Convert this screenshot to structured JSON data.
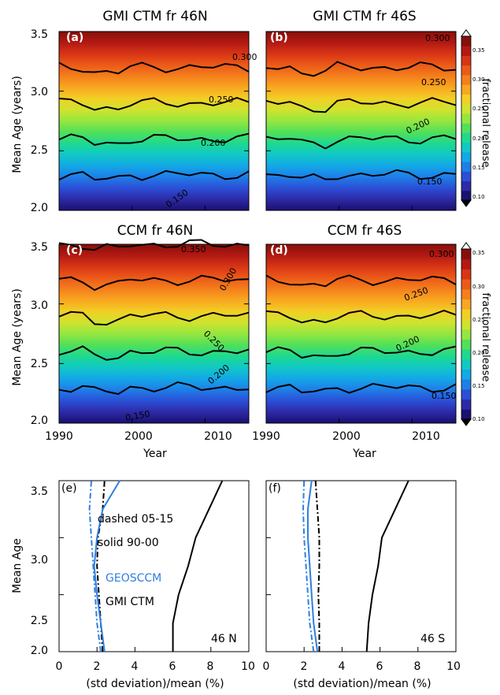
{
  "figure": {
    "colorbar_title": "fractional release",
    "colorbar_ticks": [
      "0.35",
      "0.30",
      "0.25",
      "0.20",
      "0.15",
      "0.10"
    ],
    "colormap": [
      "#1a1070",
      "#2d2aa6",
      "#2b4fd6",
      "#1e7fe8",
      "#13a8e6",
      "#11c9c4",
      "#1fd98f",
      "#52e058",
      "#96e640",
      "#d0e32e",
      "#f2cf25",
      "#f8a720",
      "#f47f1c",
      "#ec5a18",
      "#d83516",
      "#b31913",
      "#861009"
    ]
  },
  "chart_data": [
    {
      "type": "heatmap",
      "panel": "a",
      "title": "GMI CTM fr 46N",
      "x_range": [
        1990,
        2016
      ],
      "y_range": [
        2.0,
        3.5
      ],
      "ylabel": "Mean Age (years)",
      "xlabel": "",
      "y_ticks": [
        "2.0",
        "2.5",
        "3.0",
        "3.5"
      ],
      "x_ticks": [],
      "value_range": [
        0.1,
        0.35
      ],
      "contour_labels": [
        "0.300",
        "0.250",
        "0.200",
        "0.150"
      ],
      "contour_levels": [
        0.15,
        0.2,
        0.25,
        0.3
      ]
    },
    {
      "type": "heatmap",
      "panel": "b",
      "title": "GMI CTM fr 46S",
      "x_range": [
        1990,
        2016
      ],
      "y_range": [
        2.0,
        3.5
      ],
      "ylabel": "",
      "xlabel": "",
      "y_ticks": [],
      "x_ticks": [],
      "value_range": [
        0.1,
        0.35
      ],
      "contour_labels": [
        "0.300",
        "0.250",
        "0.200",
        "0.150"
      ],
      "contour_levels": [
        0.15,
        0.2,
        0.25,
        0.3
      ]
    },
    {
      "type": "heatmap",
      "panel": "c",
      "title": "CCM fr 46N",
      "x_range": [
        1990,
        2016
      ],
      "y_range": [
        2.0,
        3.5
      ],
      "ylabel": "Mean Age (years)",
      "xlabel": "Year",
      "y_ticks": [
        "2.0",
        "2.5",
        "3.0",
        "3.5"
      ],
      "x_ticks": [
        "1990",
        "2000",
        "2010"
      ],
      "value_range": [
        0.1,
        0.35
      ],
      "contour_labels": [
        "0.350",
        "0.300",
        "0.250",
        "0.200",
        "0.150"
      ],
      "contour_levels": [
        0.15,
        0.2,
        0.25,
        0.3,
        0.35
      ]
    },
    {
      "type": "heatmap",
      "panel": "d",
      "title": "CCM fr 46S",
      "x_range": [
        1990,
        2016
      ],
      "y_range": [
        2.0,
        3.5
      ],
      "ylabel": "",
      "xlabel": "Year",
      "y_ticks": [],
      "x_ticks": [
        "1990",
        "2000",
        "2010"
      ],
      "value_range": [
        0.1,
        0.35
      ],
      "contour_labels": [
        "0.300",
        "0.250",
        "0.200",
        "0.150"
      ],
      "contour_levels": [
        0.15,
        0.2,
        0.25,
        0.3
      ]
    },
    {
      "type": "line",
      "panel": "e",
      "panel_label": "(e)",
      "region_label": "46 N",
      "ylabel": "Mean Age",
      "xlabel": "(std deviation)/mean (%)",
      "xlim": [
        0,
        10
      ],
      "ylim": [
        2.0,
        3.5
      ],
      "x_ticks": [
        "0",
        "2",
        "4",
        "6",
        "8",
        "10"
      ],
      "y_ticks": [
        "2.0",
        "2.5",
        "3.0",
        "3.5"
      ],
      "legend": [
        "dashed 05-15",
        "solid 90-00",
        "GEOSCCM",
        "GMI CTM"
      ],
      "series": [
        {
          "style": "solid",
          "color": "#000000",
          "y": [
            2.0,
            2.25,
            2.5,
            2.75,
            3.0,
            3.25,
            3.5
          ],
          "x": [
            6.0,
            6.0,
            6.3,
            6.8,
            7.2,
            7.9,
            8.6
          ]
        },
        {
          "style": "dashdot",
          "color": "#000000",
          "y": [
            2.0,
            2.25,
            2.5,
            2.75,
            3.0,
            3.25,
            3.5
          ],
          "x": [
            2.3,
            2.2,
            2.1,
            2.0,
            2.05,
            2.3,
            2.4
          ]
        },
        {
          "style": "solid",
          "color": "#2f7fe0",
          "y": [
            2.0,
            2.25,
            2.5,
            2.75,
            3.0,
            3.25,
            3.5
          ],
          "x": [
            2.4,
            2.2,
            2.0,
            1.85,
            2.0,
            2.3,
            3.2
          ]
        },
        {
          "style": "dashdot",
          "color": "#2f7fe0",
          "y": [
            2.0,
            2.25,
            2.5,
            2.75,
            3.0,
            3.25,
            3.5
          ],
          "x": [
            2.2,
            2.0,
            1.9,
            1.8,
            1.7,
            1.6,
            1.7
          ]
        }
      ]
    },
    {
      "type": "line",
      "panel": "f",
      "panel_label": "(f)",
      "region_label": "46 S",
      "ylabel": "",
      "xlabel": "(std deviation)/mean (%)",
      "xlim": [
        0,
        10
      ],
      "ylim": [
        2.0,
        3.5
      ],
      "x_ticks": [
        "0",
        "2",
        "4",
        "6",
        "8",
        "10"
      ],
      "y_ticks": [],
      "legend": [],
      "series": [
        {
          "style": "solid",
          "color": "#000000",
          "y": [
            2.0,
            2.25,
            2.5,
            2.75,
            3.0,
            3.25,
            3.5
          ],
          "x": [
            5.3,
            5.4,
            5.6,
            5.9,
            6.1,
            6.8,
            7.5
          ]
        },
        {
          "style": "dashdot",
          "color": "#000000",
          "y": [
            2.0,
            2.25,
            2.5,
            2.75,
            3.0,
            3.25,
            3.5
          ],
          "x": [
            2.8,
            2.8,
            2.75,
            2.8,
            2.8,
            2.7,
            2.6
          ]
        },
        {
          "style": "solid",
          "color": "#2f7fe0",
          "y": [
            2.0,
            2.25,
            2.5,
            2.75,
            3.0,
            3.25,
            3.5
          ],
          "x": [
            2.7,
            2.5,
            2.4,
            2.3,
            2.2,
            2.2,
            2.4
          ]
        },
        {
          "style": "dashdot",
          "color": "#2f7fe0",
          "y": [
            2.0,
            2.25,
            2.5,
            2.75,
            3.0,
            3.25,
            3.5
          ],
          "x": [
            2.5,
            2.3,
            2.2,
            2.1,
            2.0,
            1.95,
            2.0
          ]
        }
      ]
    }
  ]
}
